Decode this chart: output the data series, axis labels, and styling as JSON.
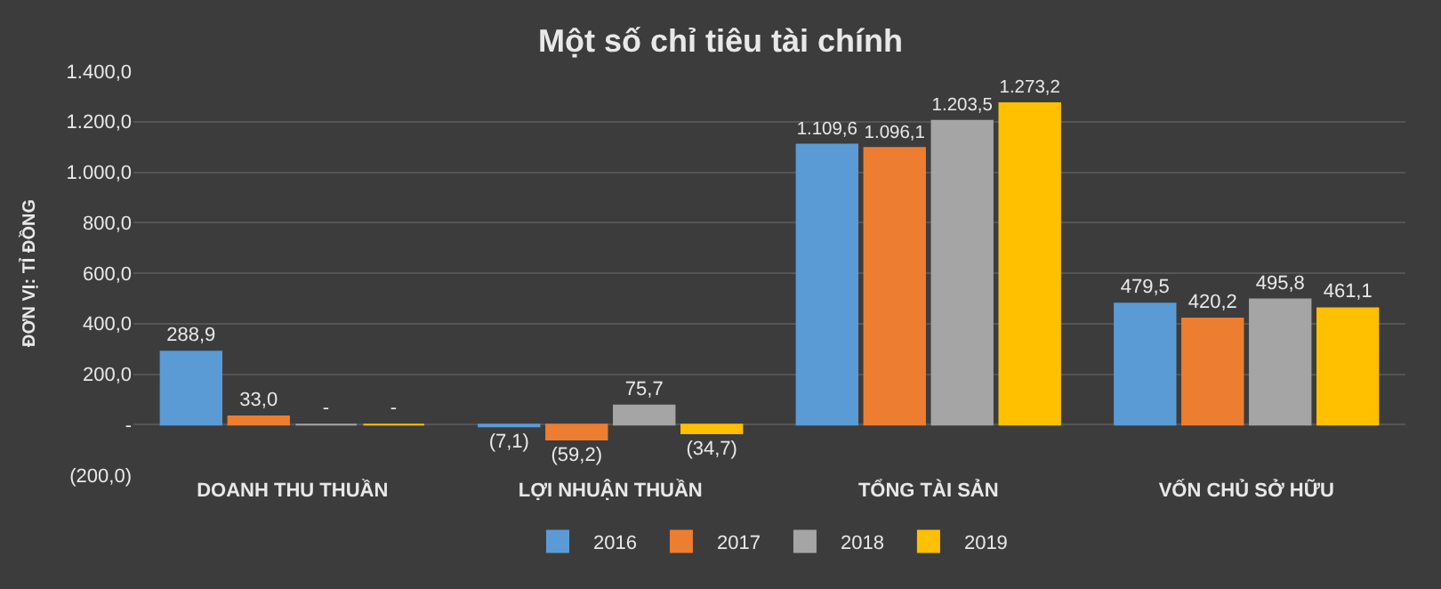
{
  "chart_data": {
    "type": "bar",
    "title": "Một số chỉ tiêu tài chính",
    "ylabel": "ĐƠN VỊ: TỈ ĐỒNG",
    "categories": [
      "DOANH THU THUẦN",
      "LỢI NHUẬN THUẦN",
      "TỔNG TÀI SẢN",
      "VỐN CHỦ SỞ HỮU"
    ],
    "series": [
      {
        "name": "2016",
        "color": "#5b9bd5",
        "values": [
          288.9,
          -7.1,
          1109.6,
          479.5
        ],
        "value_labels": [
          "288,9",
          "(7,1)",
          "1.109,6",
          "479,5"
        ]
      },
      {
        "name": "2017",
        "color": "#ed7d31",
        "values": [
          33.0,
          -59.2,
          1096.1,
          420.2
        ],
        "value_labels": [
          "33,0",
          "(59,2)",
          "1.096,1",
          "420,2"
        ]
      },
      {
        "name": "2018",
        "color": "#a5a5a5",
        "values": [
          0,
          75.7,
          1203.5,
          495.8
        ],
        "value_labels": [
          "-",
          "75,7",
          "1.203,5",
          "495,8"
        ]
      },
      {
        "name": "2019",
        "color": "#ffc000",
        "values": [
          0,
          -34.7,
          1273.2,
          461.1
        ],
        "value_labels": [
          "-",
          "(34,7)",
          "1.273,2",
          "461,1"
        ]
      }
    ],
    "ylim": [
      -200,
      1400
    ],
    "yticks": [
      {
        "value": -200,
        "label": "(200,0)"
      },
      {
        "value": 0,
        "label": "-"
      },
      {
        "value": 200,
        "label": "200,0"
      },
      {
        "value": 400,
        "label": "400,0"
      },
      {
        "value": 600,
        "label": "600,0"
      },
      {
        "value": 800,
        "label": "800,0"
      },
      {
        "value": 1000,
        "label": "1.000,0"
      },
      {
        "value": 1200,
        "label": "1.200,0"
      },
      {
        "value": 1400,
        "label": "1.400,0"
      }
    ],
    "grid": "y",
    "legend": "bottom"
  }
}
